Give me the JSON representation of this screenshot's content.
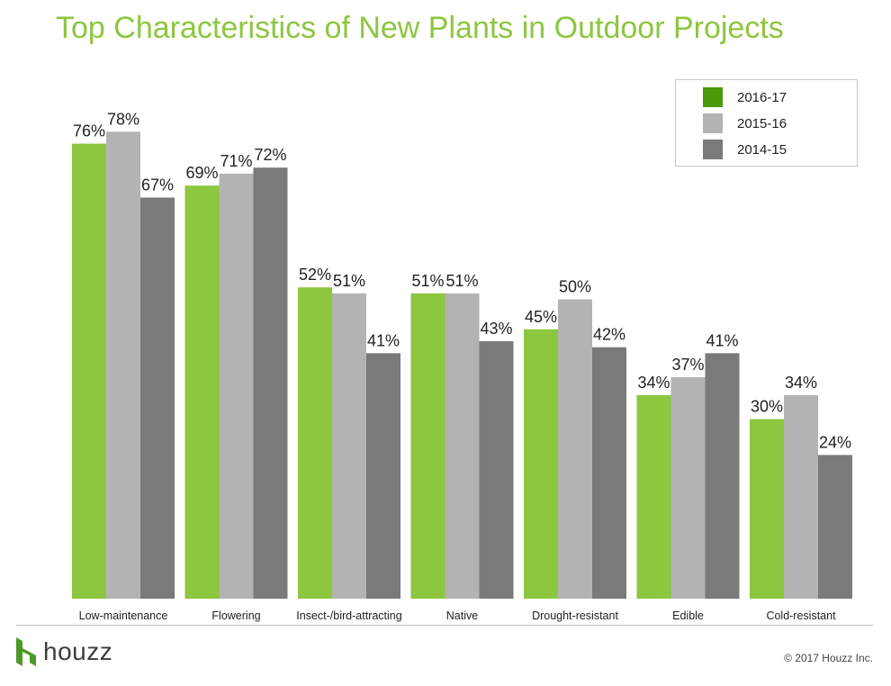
{
  "title": "Top Characteristics of New Plants in Outdoor Projects",
  "legend": {
    "items": [
      {
        "label": "2016-17",
        "color": "#4a9a0a"
      },
      {
        "label": "2015-16",
        "color": "#b3b3b3"
      },
      {
        "label": "2014-15",
        "color": "#7a7a7b"
      }
    ]
  },
  "chart_data": {
    "type": "bar",
    "title": "Top Characteristics of New Plants in Outdoor Projects",
    "categories": [
      "Low-maintenance",
      "Flowering",
      "Insect-/bird-attracting",
      "Native",
      "Drought-resistant",
      "Edible",
      "Cold-resistant"
    ],
    "series": [
      {
        "name": "2016-17",
        "color": "#8dc63f",
        "values": [
          76,
          69,
          52,
          51,
          45,
          34,
          30
        ]
      },
      {
        "name": "2015-16",
        "color": "#b3b3b3",
        "values": [
          78,
          71,
          51,
          51,
          50,
          37,
          34
        ]
      },
      {
        "name": "2014-15",
        "color": "#7a7a7b",
        "values": [
          67,
          72,
          41,
          43,
          42,
          41,
          24
        ]
      }
    ],
    "value_suffix": "%",
    "ylim": [
      0,
      100
    ],
    "grid": false,
    "legend_position": "top-right"
  },
  "footer": {
    "brand": "houzz",
    "copyright": "© 2017 Houzz Inc."
  }
}
